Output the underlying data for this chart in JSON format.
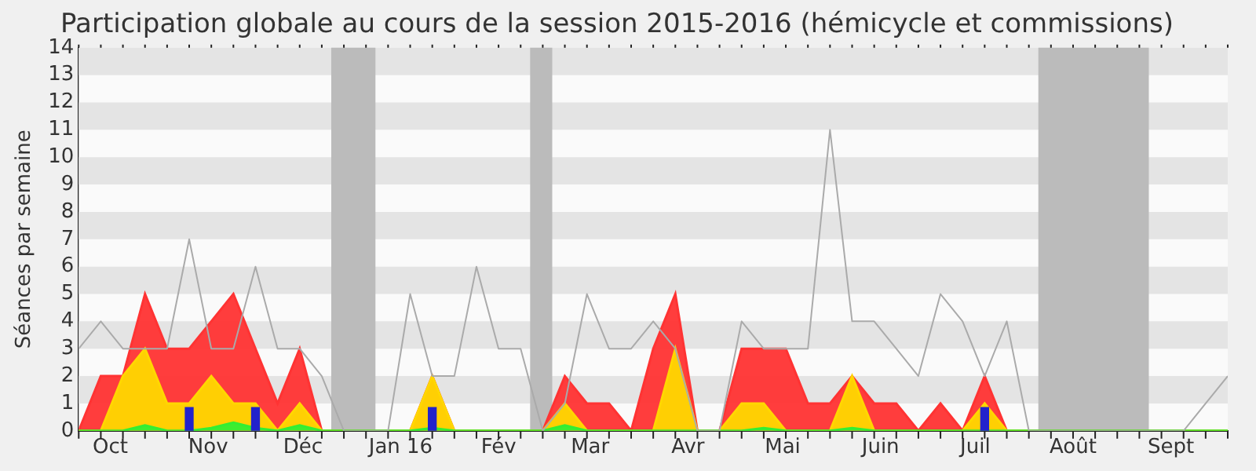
{
  "chart_data": {
    "type": "area",
    "title": "Participation globale au cours de la session 2015-2016 (hémicycle et commissions)",
    "ylabel": "Séances par semaine",
    "x": [
      "2015-09-21",
      "2015-09-28",
      "2015-10-05",
      "2015-10-12",
      "2015-10-19",
      "2015-10-26",
      "2015-11-02",
      "2015-11-09",
      "2015-11-16",
      "2015-11-23",
      "2015-11-30",
      "2015-12-07",
      "2015-12-14",
      "2015-12-21",
      "2015-12-28",
      "2016-01-04",
      "2016-01-11",
      "2016-01-18",
      "2016-01-25",
      "2016-02-01",
      "2016-02-08",
      "2016-02-15",
      "2016-02-22",
      "2016-02-29",
      "2016-03-07",
      "2016-03-14",
      "2016-03-21",
      "2016-03-28",
      "2016-04-04",
      "2016-04-11",
      "2016-04-18",
      "2016-04-25",
      "2016-05-02",
      "2016-05-09",
      "2016-05-16",
      "2016-05-23",
      "2016-05-30",
      "2016-06-06",
      "2016-06-13",
      "2016-06-20",
      "2016-06-27",
      "2016-07-04",
      "2016-07-11",
      "2016-07-18",
      "2016-07-25",
      "2016-08-01",
      "2016-08-08",
      "2016-08-15",
      "2016-08-22",
      "2016-08-29",
      "2016-09-05",
      "2016-09-12",
      "2016-09-19"
    ],
    "xlim": [
      "2015-09-21",
      "2016-09-19"
    ],
    "xticks": [
      {
        "value": "2015-10-01",
        "label": "Oct"
      },
      {
        "value": "2015-11-01",
        "label": "Nov"
      },
      {
        "value": "2015-12-01",
        "label": "Déc"
      },
      {
        "value": "2016-01-01",
        "label": "Jan 16"
      },
      {
        "value": "2016-02-01",
        "label": "Fév"
      },
      {
        "value": "2016-03-01",
        "label": "Mar"
      },
      {
        "value": "2016-04-01",
        "label": "Avr"
      },
      {
        "value": "2016-05-01",
        "label": "Mai"
      },
      {
        "value": "2016-06-01",
        "label": "Juin"
      },
      {
        "value": "2016-07-01",
        "label": "Juil"
      },
      {
        "value": "2016-08-01",
        "label": "Août"
      },
      {
        "value": "2016-09-01",
        "label": "Sept"
      }
    ],
    "ylim": [
      0,
      14
    ],
    "yticks": [
      0,
      1,
      2,
      3,
      4,
      5,
      6,
      7,
      8,
      9,
      10,
      11,
      12,
      13,
      14
    ],
    "series": [
      {
        "color": "#ff3333",
        "values": [
          0,
          2,
          2,
          5,
          3,
          3,
          4,
          5,
          3,
          1,
          3,
          0,
          0,
          0,
          0,
          0,
          2,
          0,
          0,
          0,
          0,
          0,
          2,
          1,
          1,
          0,
          3,
          5,
          0,
          0,
          3,
          3,
          3,
          1,
          1,
          2,
          1,
          1,
          0,
          1,
          0,
          2,
          0,
          0,
          0,
          0,
          0,
          0,
          0,
          0,
          0,
          0,
          0
        ]
      },
      {
        "color": "#ffd700",
        "values": [
          0,
          0,
          2,
          3,
          1,
          1,
          2,
          1,
          1,
          0,
          1,
          0,
          0,
          0,
          0,
          0,
          2,
          0,
          0,
          0,
          0,
          0,
          1,
          0,
          0,
          0,
          0,
          3,
          0,
          0,
          1,
          1,
          0,
          0,
          0,
          2,
          0,
          0,
          0,
          0,
          0,
          1,
          0,
          0,
          0,
          0,
          0,
          0,
          0,
          0,
          0,
          0,
          0
        ]
      },
      {
        "color": "#33ee33",
        "values": [
          0,
          0,
          0,
          0.2,
          0,
          0,
          0.1,
          0.3,
          0.1,
          0,
          0.2,
          0,
          0,
          0,
          0,
          0,
          0.1,
          0,
          0,
          0,
          0,
          0,
          0.2,
          0,
          0,
          0,
          0,
          0,
          0,
          0,
          0,
          0.1,
          0,
          0,
          0,
          0.1,
          0,
          0,
          0,
          0,
          0,
          0,
          0,
          0,
          0,
          0,
          0,
          0,
          0,
          0,
          0,
          0,
          0
        ]
      },
      {
        "type": "bar",
        "color": "#2222cc",
        "x": [
          "2015-10-26",
          "2015-11-16",
          "2016-01-11",
          "2016-07-04"
        ],
        "values": [
          0.85,
          0.85,
          0.85,
          0.85
        ]
      },
      {
        "type": "line",
        "color": "#aaaaaa",
        "values": [
          3,
          4,
          3,
          3,
          3,
          7,
          3,
          3,
          6,
          3,
          3,
          2,
          0,
          0,
          0,
          5,
          2,
          2,
          6,
          3,
          3,
          0,
          1,
          5,
          3,
          3,
          4,
          3,
          0,
          0,
          4,
          3,
          3,
          3,
          11,
          4,
          4,
          3,
          2,
          5,
          4,
          2,
          4,
          0,
          0,
          0,
          0,
          0,
          0,
          0,
          0,
          1,
          2
        ]
      }
    ],
    "bands": [
      {
        "axis": "x",
        "from": "2015-12-10",
        "to": "2015-12-24",
        "color": "#bbbbbb"
      },
      {
        "axis": "x",
        "from": "2016-02-11",
        "to": "2016-02-18",
        "color": "#bbbbbb"
      },
      {
        "axis": "x",
        "from": "2016-07-21",
        "to": "2016-08-25",
        "color": "#bbbbbb"
      }
    ]
  }
}
